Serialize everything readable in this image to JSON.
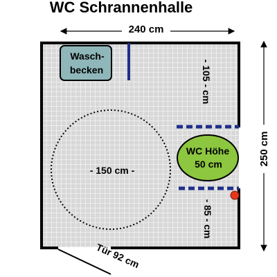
{
  "title": "WC Schrannenhalle",
  "dimensions": {
    "width": "240 cm",
    "height": "250 cm",
    "wall_gap_top": "- 105 - cm",
    "wall_gap_bottom": "- 85 - cm",
    "turning_circle": "- 150 cm -",
    "door": "Tür 92 cm"
  },
  "fixtures": {
    "sink_line1": "Wasch-",
    "sink_line2": "becken",
    "wc_line1": "WC Höhe",
    "wc_line2": "50 cm"
  },
  "colors": {
    "wall": "#000000",
    "tile_bg": "#d8d8d8",
    "tile_line": "#ffffff",
    "sink_fill": "#8fb7b9",
    "wc_fill": "#8dc63f",
    "grab_bar": "#1f2e8a",
    "alarm": "#e8361c"
  }
}
